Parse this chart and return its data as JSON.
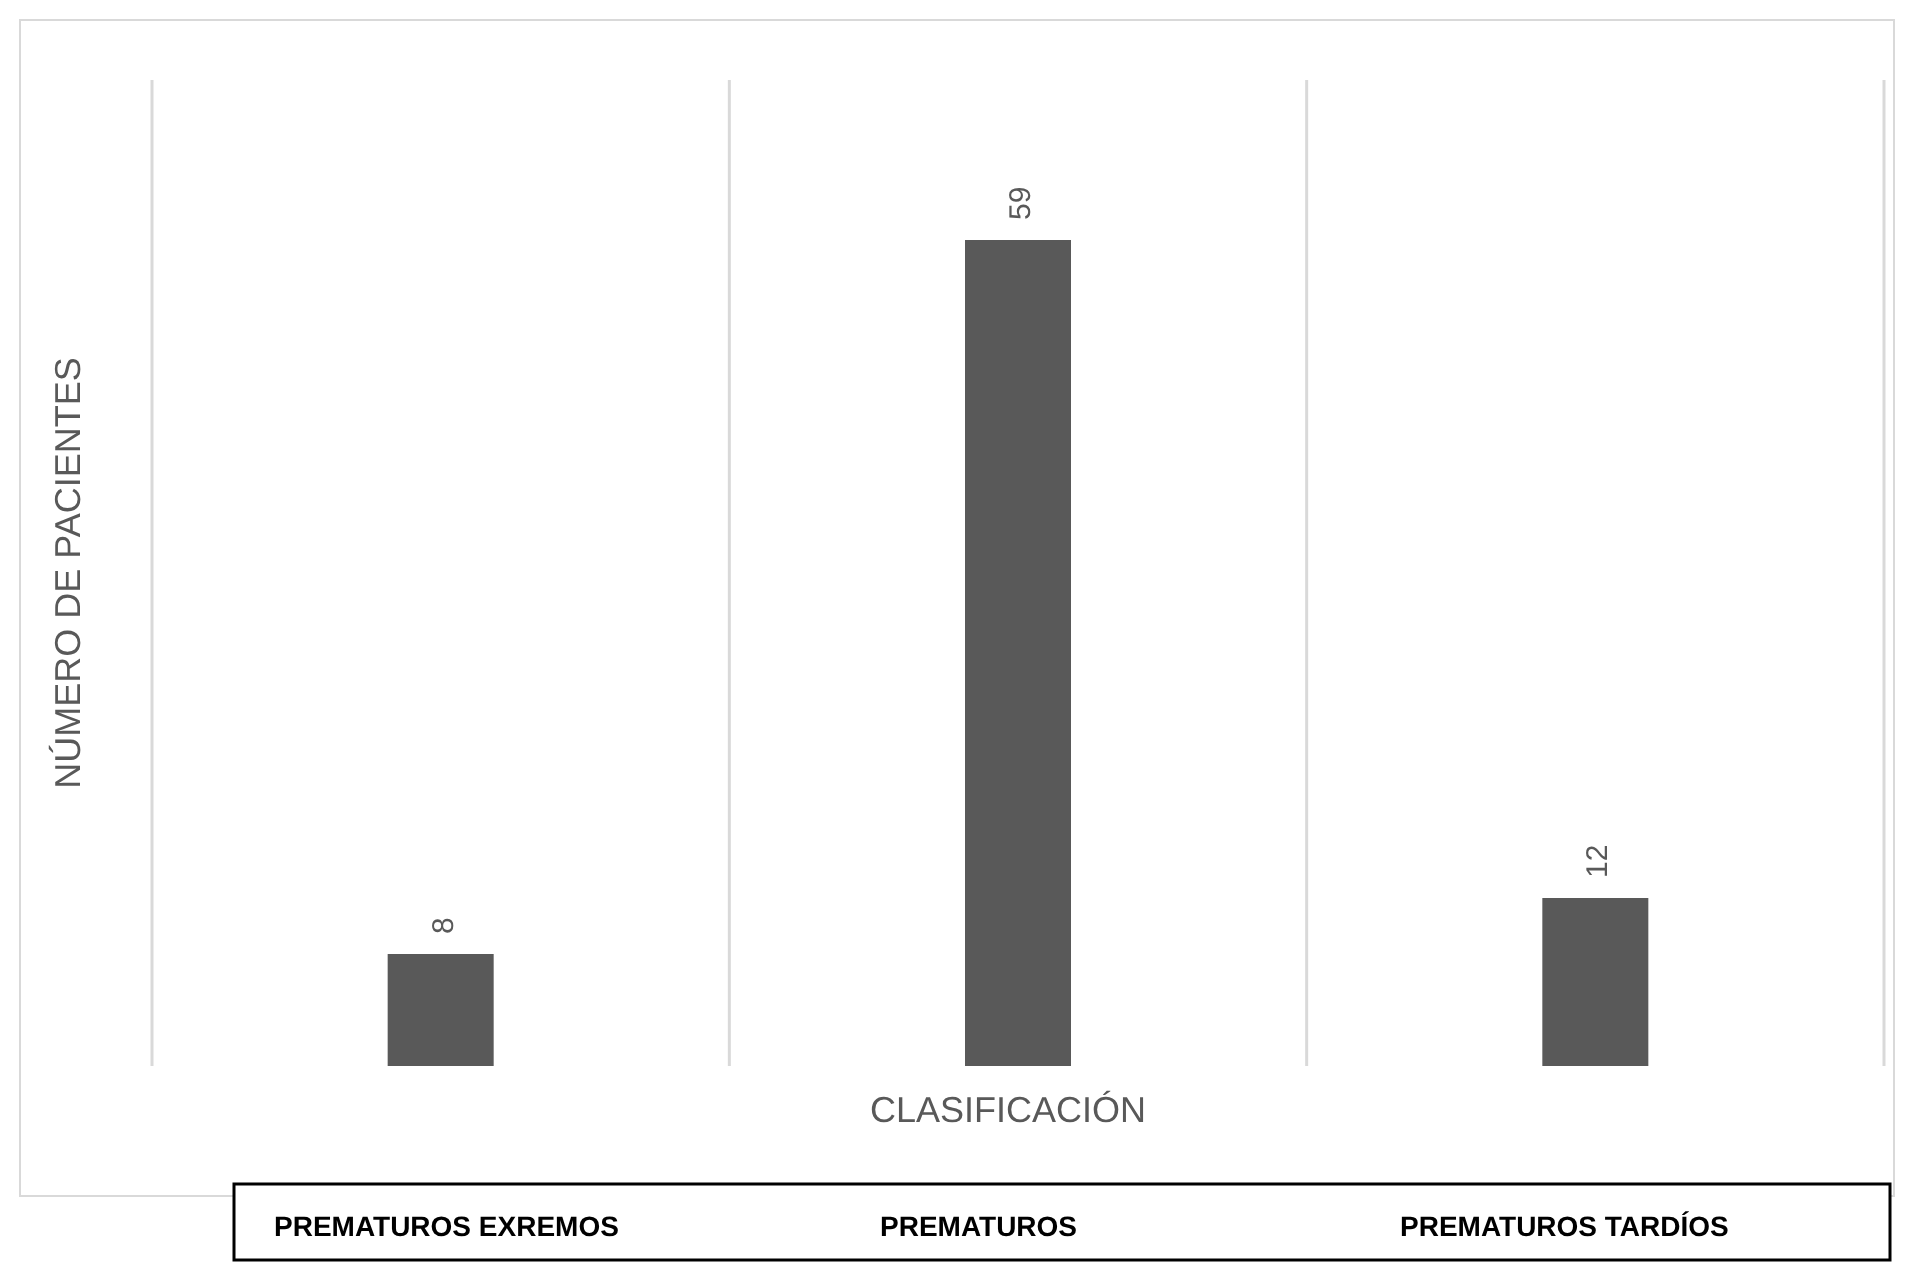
{
  "chart_data": {
    "type": "bar",
    "xlabel": "CLASIFICACIÓN",
    "ylabel": "NÚMERO DE PACIENTES",
    "categories": [
      "PREMATUROS EXREMOS",
      "PREMATUROS",
      "PREMATUROS TARDÍOS"
    ],
    "values": [
      8,
      59,
      12
    ],
    "color": "#595959",
    "data_labels": true,
    "grid": "x"
  }
}
